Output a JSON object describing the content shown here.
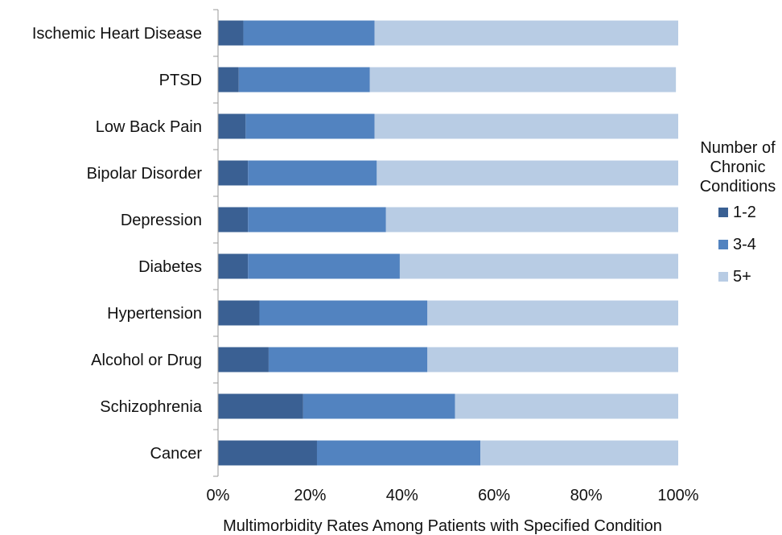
{
  "chart_data": {
    "type": "bar",
    "orientation": "horizontal",
    "stacked": true,
    "categories": [
      "Ischemic Heart Disease",
      "PTSD",
      "Low Back Pain",
      "Bipolar Disorder",
      "Depression",
      "Diabetes",
      "Hypertension",
      "Alcohol or Drug",
      "Schizophrenia",
      "Cancer"
    ],
    "series": [
      {
        "name": "1-2",
        "color": "#3a6093",
        "values": [
          5.5,
          4.5,
          6,
          6.5,
          6.5,
          6.5,
          9,
          11,
          18.5,
          21.5
        ]
      },
      {
        "name": "3-4",
        "color": "#5283c0",
        "values": [
          28.5,
          28.5,
          28,
          28,
          30,
          33,
          36.5,
          34.5,
          33,
          35.5
        ]
      },
      {
        "name": "5+",
        "color": "#b8cce4",
        "values": [
          66,
          66.5,
          66,
          65.5,
          63.5,
          60.5,
          54.5,
          54.5,
          48.5,
          43
        ]
      }
    ],
    "xlabel": "Multimorbidity Rates Among  Patients with Specified Condition",
    "xlim": [
      0,
      100
    ],
    "xticks": [
      "0%",
      "20%",
      "40%",
      "60%",
      "80%",
      "100%"
    ],
    "legend_title": [
      "Number of",
      "Chronic",
      "Conditions"
    ],
    "legend_position": "right",
    "grid": false
  }
}
